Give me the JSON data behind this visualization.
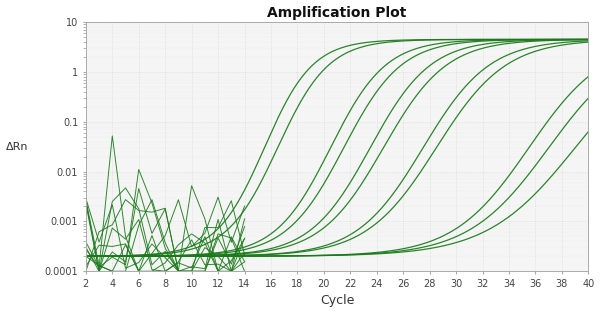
{
  "title": "Amplification Plot",
  "xlabel": "Cycle",
  "ylabel": "ΔRn",
  "xlim": [
    2,
    40
  ],
  "ylim_log": [
    0.0001,
    10
  ],
  "background_color": "#ffffff",
  "plot_bg_color": "#f5f5f5",
  "grid_color": "#cccccc",
  "line_color": "#1a7a1a",
  "curves": [
    {
      "ct": 15.5,
      "plateau": 4.5,
      "slope": 0.55,
      "efficiency": 1.85
    },
    {
      "ct": 16.5,
      "plateau": 4.5,
      "slope": 0.52,
      "efficiency": 1.85
    },
    {
      "ct": 20.5,
      "plateau": 4.5,
      "slope": 0.48,
      "efficiency": 1.85
    },
    {
      "ct": 21.5,
      "plateau": 4.5,
      "slope": 0.46,
      "efficiency": 1.85
    },
    {
      "ct": 23.5,
      "plateau": 4.5,
      "slope": 0.44,
      "efficiency": 1.85
    },
    {
      "ct": 24.5,
      "plateau": 4.5,
      "slope": 0.42,
      "efficiency": 1.85
    },
    {
      "ct": 27.5,
      "plateau": 4.5,
      "slope": 0.4,
      "efficiency": 1.85
    },
    {
      "ct": 28.5,
      "plateau": 4.5,
      "slope": 0.38,
      "efficiency": 1.85
    },
    {
      "ct": 35.5,
      "plateau": 4.5,
      "slope": 0.35,
      "efficiency": 1.85
    },
    {
      "ct": 37.0,
      "plateau": 4.5,
      "slope": 0.33,
      "efficiency": 1.85
    },
    {
      "ct": 39.0,
      "plateau": 4.5,
      "slope": 0.3,
      "efficiency": 1.85
    }
  ],
  "baseline": 0.0002,
  "noise_seeds": [
    1,
    3,
    5,
    7,
    9,
    11,
    13,
    15,
    17,
    19
  ]
}
